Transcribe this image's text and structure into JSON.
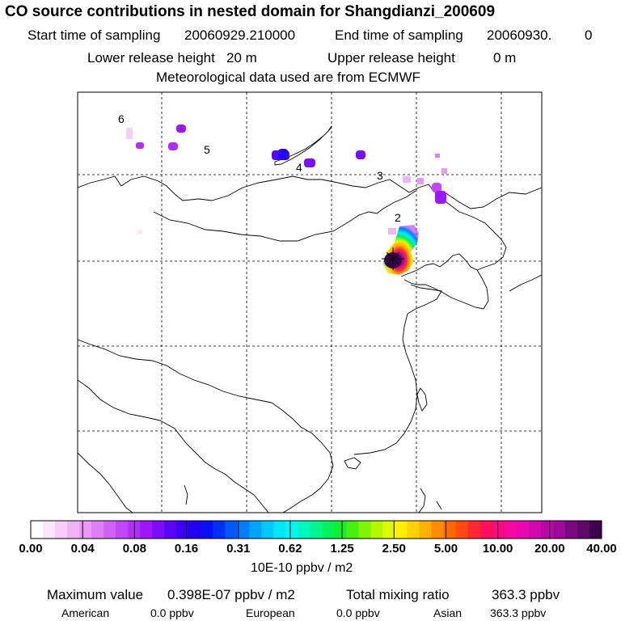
{
  "title": "CO  source contributions in nested domain for Shangdianzi_200609",
  "sampling": {
    "start_label": "Start time of sampling",
    "start_value": "20060929.210000",
    "end_label": "End time of sampling",
    "end_value": "20060930.",
    "end_extra": "0"
  },
  "release": {
    "lower_label": "Lower release height",
    "lower_value": "20 m",
    "upper_label": "Upper release height",
    "upper_value": "0 m"
  },
  "meteo_note": "Meteorological data used are from ECMWF",
  "map": {
    "day_markers": [
      "6",
      "5",
      "4",
      "3",
      "2"
    ],
    "receptor": "Shangdianzi"
  },
  "colorbar": {
    "ticks": [
      "0.00",
      "0.04",
      "0.08",
      "0.16",
      "0.31",
      "0.62",
      "1.25",
      "2.50",
      "5.00",
      "10.00",
      "20.00",
      "40.00"
    ],
    "unit": "10E-10 ppbv / m2",
    "colors": [
      "#ffffff",
      "#fbe6fb",
      "#f6cdf8",
      "#f0b4f6",
      "#e99af6",
      "#df7ef6",
      "#d262f7",
      "#c247f8",
      "#b12ef8",
      "#9c18f8",
      "#7d0cf8",
      "#5a05f7",
      "#3b00f6",
      "#2200f4",
      "#0a10f3",
      "#0030f6",
      "#0058f8",
      "#007ef9",
      "#00a4fa",
      "#00c8fb",
      "#00e6fb",
      "#00f8f0",
      "#00f8c0",
      "#00f68c",
      "#00f45a",
      "#10f030",
      "#48f010",
      "#80f400",
      "#b4f800",
      "#e0fa00",
      "#fff000",
      "#ffd200",
      "#ffb000",
      "#ff8c00",
      "#ff6800",
      "#ff4a10",
      "#ff2a30",
      "#ff1058",
      "#ff0880",
      "#f808a0",
      "#e808b0",
      "#d008b0",
      "#b808a8",
      "#9c0898",
      "#7c0880",
      "#5e0868",
      "#400050"
    ]
  },
  "stats": {
    "max_label": "Maximum value",
    "max_value": "0.398E-07 ppbv / m2",
    "total_label": "Total mixing ratio",
    "total_value": "363.3 ppbv",
    "american_label": "American",
    "american_value": "0.0 ppbv",
    "european_label": "European",
    "european_value": "0.0 ppbv",
    "asian_label": "Asian",
    "asian_value": "363.3 ppbv"
  }
}
